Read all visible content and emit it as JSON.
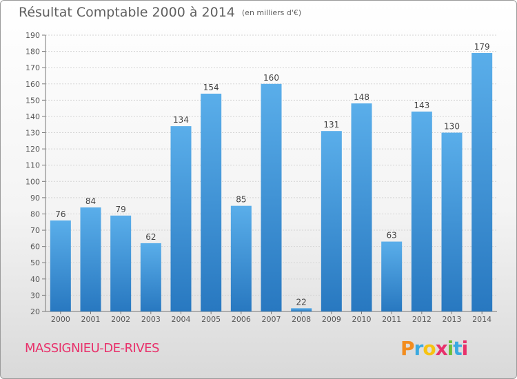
{
  "header": {
    "title": "Résultat Comptable 2000 à 2014",
    "unit": "(en milliers d'€)"
  },
  "footer": {
    "city": "MASSIGNIEU-DE-RIVES",
    "logo_letters": [
      "P",
      "r",
      "o",
      "x",
      "i",
      "t",
      "i"
    ],
    "logo_colors": [
      "#f28c1e",
      "#3aa9e0",
      "#f6c311",
      "#e8316b",
      "#6cbf3b",
      "#3aa9e0",
      "#e8316b"
    ]
  },
  "colors": {
    "bar": "#4ea3e3",
    "bar_dark": "#2a7bc4",
    "accent": "#e8316b"
  },
  "chart_data": {
    "type": "bar",
    "title": "Résultat Comptable 2000 à 2014",
    "xlabel": "",
    "ylabel": "",
    "categories": [
      "2000",
      "2001",
      "2002",
      "2003",
      "2004",
      "2005",
      "2006",
      "2007",
      "2008",
      "2009",
      "2010",
      "2011",
      "2012",
      "2013",
      "2014"
    ],
    "values": [
      76,
      84,
      79,
      62,
      134,
      154,
      85,
      160,
      22,
      131,
      148,
      63,
      143,
      130,
      179
    ],
    "ylim": [
      20,
      190
    ],
    "yticks": [
      20,
      30,
      40,
      50,
      60,
      70,
      80,
      90,
      100,
      110,
      120,
      130,
      140,
      150,
      160,
      170,
      180,
      190
    ],
    "grid": true,
    "legend": "none"
  }
}
